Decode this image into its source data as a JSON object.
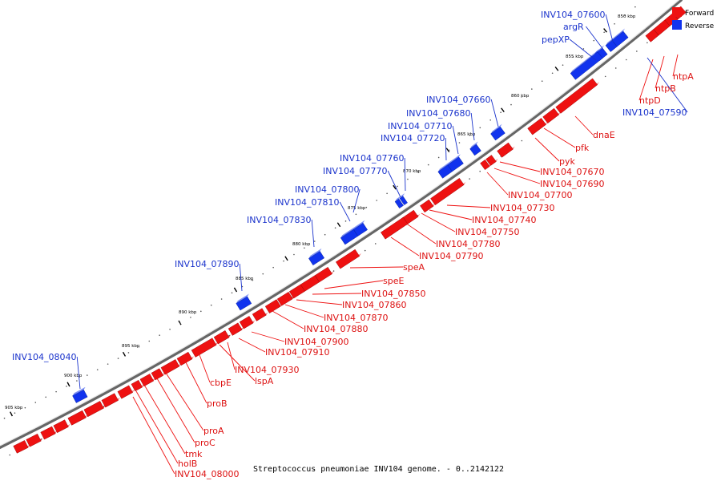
{
  "title": "Streptococcus pneumoniae INV104 genome. - 0..2142122",
  "legend": {
    "forward_label": "Forward",
    "reverse_label": "Reverse",
    "forward_color": "#ee1111",
    "reverse_color": "#1133ee"
  },
  "scale_ticks": [
    "850 kbp",
    "855 kbp",
    "860 kbp",
    "865 kbp",
    "870 kbp",
    "875 kbp",
    "880 kbp",
    "885 kbp",
    "890 kbp",
    "895 kbp",
    "900 kbp",
    "905 kbp"
  ],
  "forward_labels": [
    "ntpA",
    "ntpB",
    "ntpD",
    "dnaE",
    "pfk",
    "pyk",
    "INV104_07670",
    "INV104_07690",
    "INV104_07700",
    "INV104_07730",
    "INV104_07740",
    "INV104_07750",
    "INV104_07780",
    "INV104_07790",
    "speA",
    "speE",
    "INV104_07850",
    "INV104_07860",
    "INV104_07870",
    "INV104_07880",
    "INV104_07900",
    "INV104_07910",
    "INV104_07930",
    "lspA",
    "cbpE",
    "proB",
    "proA",
    "proC",
    "tmk",
    "holB",
    "INV104_08000"
  ],
  "reverse_labels": [
    "INV104_07600",
    "argR",
    "pepXP",
    "INV104_07590",
    "INV104_07660",
    "INV104_07680",
    "INV104_07710",
    "INV104_07720",
    "INV104_07760",
    "INV104_07770",
    "INV104_07800",
    "INV104_07810",
    "INV104_07830",
    "INV104_07890",
    "INV104_08040"
  ]
}
